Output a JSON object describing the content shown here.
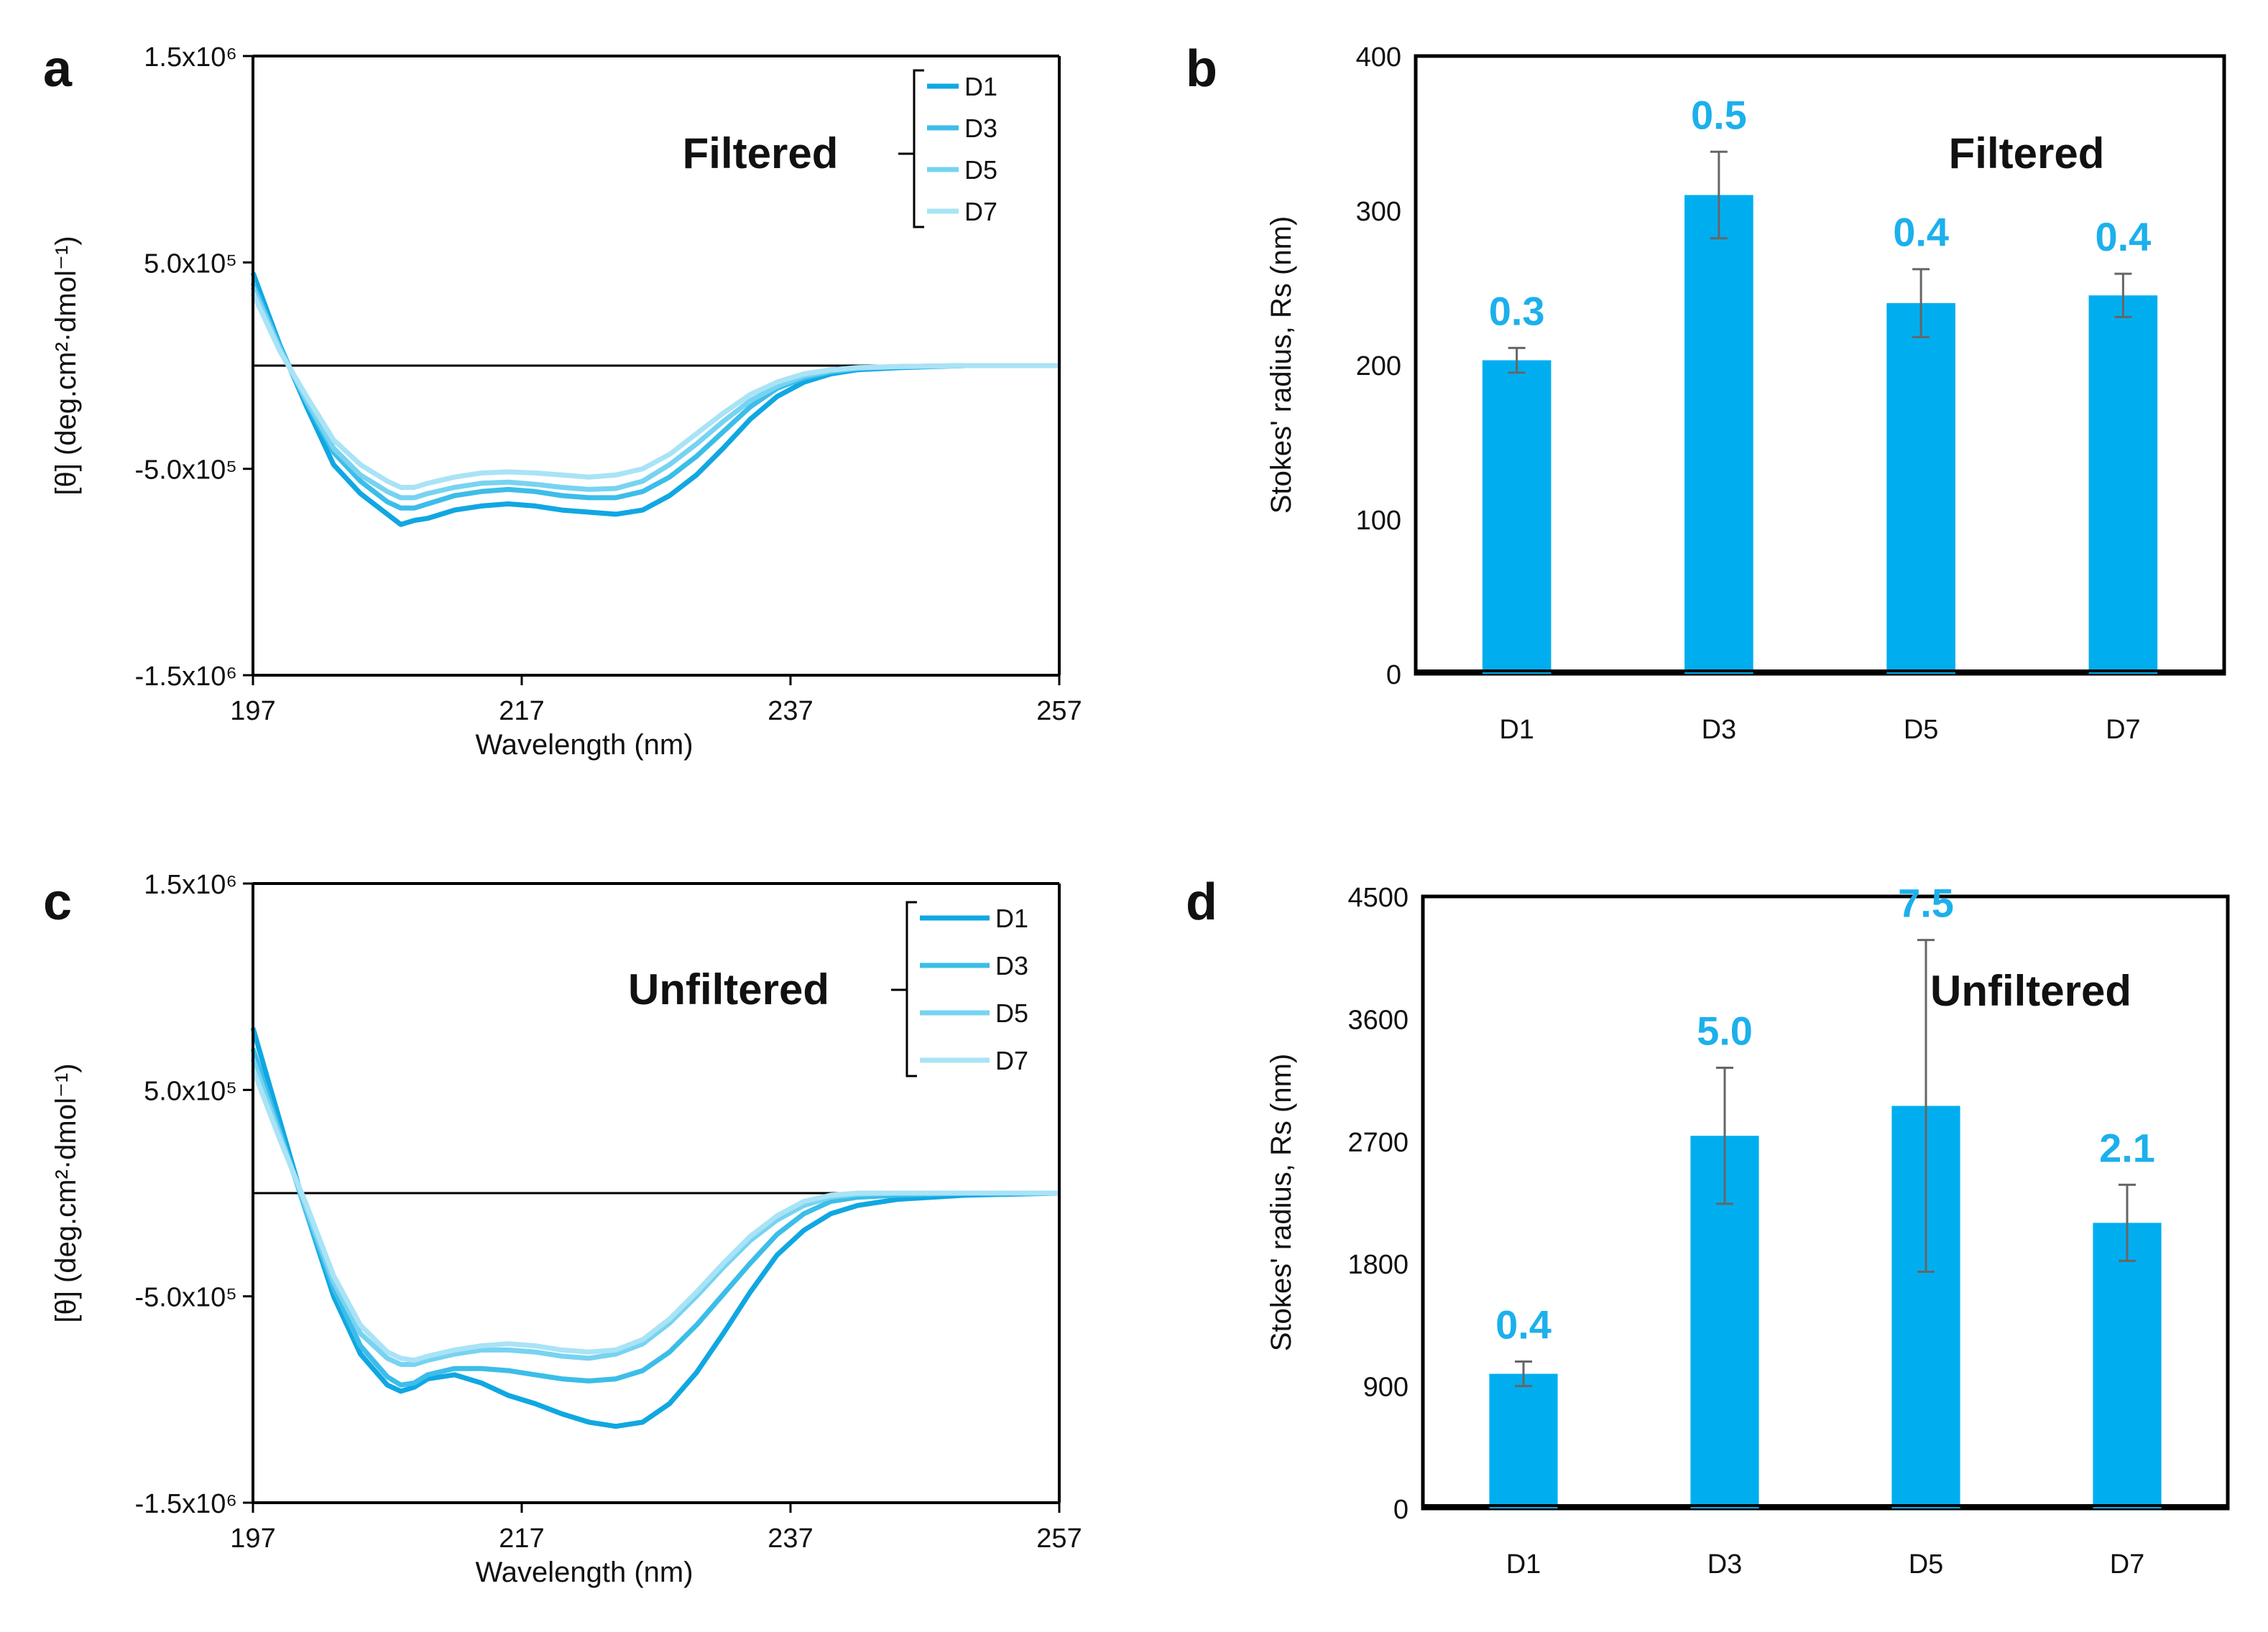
{
  "colors": {
    "bar": "#00aeef",
    "label": "#1cb0ec",
    "series": [
      "#10a7e2",
      "#3cbde9",
      "#77d3f1",
      "#a9e3f6"
    ],
    "axis": "#000000",
    "error": "#666666"
  },
  "chart_data": [
    {
      "panel": "a",
      "type": "line",
      "title": "Filtered",
      "xlabel": "Wavelength (nm)",
      "ylabel": "[θ] (deg.cm²·dmol⁻¹)",
      "xlim": [
        197,
        257
      ],
      "ylim": [
        -1500000,
        1500000
      ],
      "x_ticks": [
        197,
        217,
        237,
        257
      ],
      "x_tick_labels": [
        "197",
        "217",
        "237",
        "257"
      ],
      "y_ticks": [
        1500000,
        500000,
        -500000,
        -1500000
      ],
      "y_tick_labels": [
        "1.5x10⁶",
        "5.0x10⁵",
        "-5.0x10⁵",
        "-1.5x10⁶"
      ],
      "legend": [
        "D1",
        "D3",
        "D5",
        "D7"
      ],
      "series": [
        {
          "name": "D1",
          "x": [
            197,
            199,
            201,
            203,
            205,
            207,
            208,
            209,
            210,
            212,
            214,
            216,
            218,
            220,
            222,
            224,
            226,
            228,
            230,
            232,
            234,
            236,
            238,
            240,
            242,
            245,
            250,
            257
          ],
          "y": [
            450000,
            100000,
            -200000,
            -480000,
            -620000,
            -720000,
            -770000,
            -750000,
            -740000,
            -700000,
            -680000,
            -670000,
            -680000,
            -700000,
            -710000,
            -720000,
            -700000,
            -630000,
            -530000,
            -400000,
            -260000,
            -150000,
            -80000,
            -40000,
            -20000,
            -10000,
            0,
            0
          ]
        },
        {
          "name": "D3",
          "x": [
            197,
            199,
            201,
            203,
            205,
            207,
            208,
            209,
            210,
            212,
            214,
            216,
            218,
            220,
            222,
            224,
            226,
            228,
            230,
            232,
            234,
            236,
            238,
            240,
            242,
            245,
            250,
            257
          ],
          "y": [
            400000,
            90000,
            -180000,
            -420000,
            -560000,
            -660000,
            -690000,
            -690000,
            -670000,
            -630000,
            -610000,
            -600000,
            -610000,
            -630000,
            -640000,
            -640000,
            -610000,
            -540000,
            -440000,
            -320000,
            -200000,
            -110000,
            -60000,
            -30000,
            -15000,
            -5000,
            0,
            0
          ]
        },
        {
          "name": "D5",
          "x": [
            197,
            199,
            201,
            203,
            205,
            207,
            208,
            209,
            210,
            212,
            214,
            216,
            218,
            220,
            222,
            224,
            226,
            228,
            230,
            232,
            234,
            236,
            238,
            240,
            242,
            245,
            250,
            257
          ],
          "y": [
            380000,
            80000,
            -170000,
            -400000,
            -530000,
            -610000,
            -640000,
            -640000,
            -620000,
            -590000,
            -570000,
            -565000,
            -575000,
            -590000,
            -600000,
            -595000,
            -560000,
            -480000,
            -380000,
            -270000,
            -170000,
            -100000,
            -50000,
            -25000,
            -10000,
            -5000,
            0,
            0
          ]
        },
        {
          "name": "D7",
          "x": [
            197,
            199,
            201,
            203,
            205,
            207,
            208,
            209,
            210,
            212,
            214,
            216,
            218,
            220,
            222,
            224,
            226,
            228,
            230,
            232,
            234,
            236,
            238,
            240,
            242,
            245,
            250,
            257
          ],
          "y": [
            350000,
            70000,
            -150000,
            -360000,
            -480000,
            -560000,
            -590000,
            -590000,
            -570000,
            -540000,
            -520000,
            -515000,
            -520000,
            -530000,
            -540000,
            -530000,
            -500000,
            -430000,
            -330000,
            -230000,
            -140000,
            -80000,
            -40000,
            -20000,
            -10000,
            -5000,
            0,
            0
          ]
        }
      ]
    },
    {
      "panel": "b",
      "type": "bar",
      "title": "Filtered",
      "xlabel": "",
      "ylabel": "Stokes' radius, Rs (nm)",
      "ylim": [
        0,
        400
      ],
      "y_ticks": [
        0,
        100,
        200,
        300,
        400
      ],
      "y_tick_labels": [
        "0",
        "100",
        "200",
        "300",
        "400"
      ],
      "categories": [
        "D1",
        "D3",
        "D5",
        "D7"
      ],
      "values": [
        203,
        310,
        240,
        245
      ],
      "errors": [
        8,
        28,
        22,
        14
      ],
      "labels": [
        "0.3",
        "0.5",
        "0.4",
        "0.4"
      ]
    },
    {
      "panel": "c",
      "type": "line",
      "title": "Unfiltered",
      "xlabel": "Wavelength (nm)",
      "ylabel": "[θ] (deg.cm²·dmol⁻¹)",
      "xlim": [
        197,
        257
      ],
      "ylim": [
        -1500000,
        1500000
      ],
      "x_ticks": [
        197,
        217,
        237,
        257
      ],
      "x_tick_labels": [
        "197",
        "217",
        "237",
        "257"
      ],
      "y_ticks": [
        1500000,
        500000,
        -500000,
        -1500000
      ],
      "y_tick_labels": [
        "1.5x10⁶",
        "5.0x10⁵",
        "-5.0x10⁵",
        "-1.5x10⁶"
      ],
      "legend": [
        "D1",
        "D3",
        "D5",
        "D7"
      ],
      "series": [
        {
          "name": "D1",
          "x": [
            197,
            199,
            201,
            203,
            205,
            207,
            208,
            209,
            210,
            212,
            214,
            216,
            218,
            220,
            222,
            224,
            226,
            228,
            230,
            232,
            234,
            236,
            238,
            240,
            242,
            245,
            250,
            257
          ],
          "y": [
            800000,
            350000,
            -100000,
            -500000,
            -780000,
            -930000,
            -960000,
            -940000,
            -900000,
            -880000,
            -920000,
            -980000,
            -1020000,
            -1070000,
            -1110000,
            -1130000,
            -1110000,
            -1020000,
            -870000,
            -680000,
            -480000,
            -300000,
            -180000,
            -100000,
            -60000,
            -30000,
            -10000,
            0
          ]
        },
        {
          "name": "D3",
          "x": [
            197,
            199,
            201,
            203,
            205,
            207,
            208,
            209,
            210,
            212,
            214,
            216,
            218,
            220,
            222,
            224,
            226,
            228,
            230,
            232,
            234,
            236,
            238,
            240,
            242,
            245,
            250,
            257
          ],
          "y": [
            700000,
            300000,
            -100000,
            -460000,
            -740000,
            -890000,
            -930000,
            -920000,
            -880000,
            -850000,
            -850000,
            -860000,
            -880000,
            -900000,
            -910000,
            -900000,
            -860000,
            -770000,
            -640000,
            -490000,
            -340000,
            -200000,
            -100000,
            -40000,
            -20000,
            -10000,
            0,
            0
          ]
        },
        {
          "name": "D5",
          "x": [
            197,
            199,
            201,
            203,
            205,
            207,
            208,
            209,
            210,
            212,
            214,
            216,
            218,
            220,
            222,
            224,
            226,
            228,
            230,
            232,
            234,
            236,
            238,
            240,
            242,
            245,
            250,
            257
          ],
          "y": [
            650000,
            280000,
            -80000,
            -430000,
            -680000,
            -800000,
            -830000,
            -830000,
            -810000,
            -780000,
            -760000,
            -760000,
            -770000,
            -790000,
            -800000,
            -780000,
            -730000,
            -630000,
            -500000,
            -360000,
            -230000,
            -130000,
            -60000,
            -20000,
            -5000,
            0,
            0,
            0
          ]
        },
        {
          "name": "D7",
          "x": [
            197,
            199,
            201,
            203,
            205,
            207,
            208,
            209,
            210,
            212,
            214,
            216,
            218,
            220,
            222,
            224,
            226,
            228,
            230,
            232,
            234,
            236,
            238,
            240,
            242,
            245,
            250,
            257
          ],
          "y": [
            600000,
            260000,
            -60000,
            -400000,
            -640000,
            -770000,
            -800000,
            -810000,
            -790000,
            -760000,
            -740000,
            -730000,
            -740000,
            -760000,
            -770000,
            -760000,
            -710000,
            -610000,
            -480000,
            -340000,
            -210000,
            -110000,
            -40000,
            -10000,
            0,
            0,
            0,
            0
          ]
        }
      ]
    },
    {
      "panel": "d",
      "type": "bar",
      "title": "Unfiltered",
      "xlabel": "",
      "ylabel": "Stokes' radius, Rs (nm)",
      "ylim": [
        0,
        4500
      ],
      "y_ticks": [
        0,
        900,
        1800,
        2700,
        3600,
        4500
      ],
      "y_tick_labels": [
        "0",
        "900",
        "1800",
        "2700",
        "3600",
        "4500"
      ],
      "categories": [
        "D1",
        "D3",
        "D5",
        "D7"
      ],
      "values": [
        990,
        2740,
        2960,
        2100
      ],
      "errors": [
        90,
        500,
        1220,
        280
      ],
      "labels": [
        "0.4",
        "5.0",
        "7.5",
        "2.1"
      ]
    }
  ]
}
